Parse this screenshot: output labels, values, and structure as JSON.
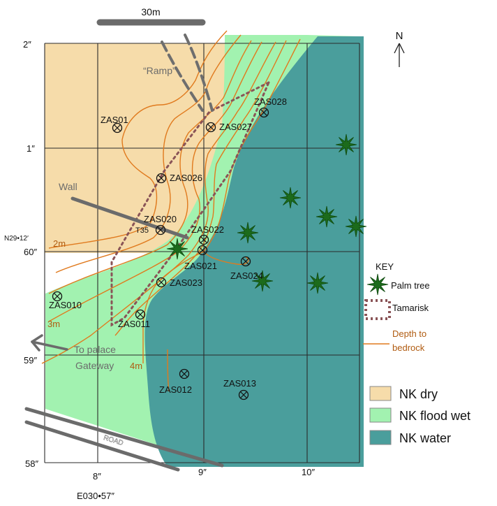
{
  "scale_bar": {
    "label": "30m"
  },
  "north": {
    "label": "N"
  },
  "colors": {
    "dry": "#f6dcaa",
    "flood_wet": "#a2f2b0",
    "water": "#4a9e9c",
    "contour": "#e07a1e",
    "tamarisk": "#8a5457",
    "palm": "#1c6b1c",
    "grid": "#2a2a2a"
  },
  "grid_labels": {
    "lat": [
      "2″",
      "1″",
      "60″",
      "59″",
      "58″"
    ],
    "lat_ref": "N29•12′",
    "lon": [
      "8″",
      "9″",
      "10″"
    ],
    "lon_ref": "E030•57″"
  },
  "annotations": {
    "ramp": "“Ramp”",
    "wall": "Wall",
    "t35": "T35",
    "to_palace": "To palace",
    "gateway": "Gateway",
    "road": "ROAD"
  },
  "depth_labels": [
    "2m",
    "3m",
    "4m"
  ],
  "sample_points": [
    {
      "id": "ZAS01"
    },
    {
      "id": "ZAS028"
    },
    {
      "id": "ZAS027"
    },
    {
      "id": "ZAS026"
    },
    {
      "id": "ZAS020"
    },
    {
      "id": "ZAS022"
    },
    {
      "id": "ZAS021"
    },
    {
      "id": "ZAS024"
    },
    {
      "id": "ZAS023"
    },
    {
      "id": "ZAS010"
    },
    {
      "id": "ZAS011"
    },
    {
      "id": "ZAS012"
    },
    {
      "id": "ZAS013"
    }
  ],
  "key": {
    "title": "KEY",
    "palm": "Palm tree",
    "tamarisk": "Tamarisk",
    "depth_line1": "Depth to",
    "depth_line2": "bedrock"
  },
  "legend": [
    {
      "label": "NK dry",
      "color": "#f6dcaa"
    },
    {
      "label": "NK flood wet",
      "color": "#a2f2b0"
    },
    {
      "label": "NK water",
      "color": "#4a9e9c"
    }
  ]
}
